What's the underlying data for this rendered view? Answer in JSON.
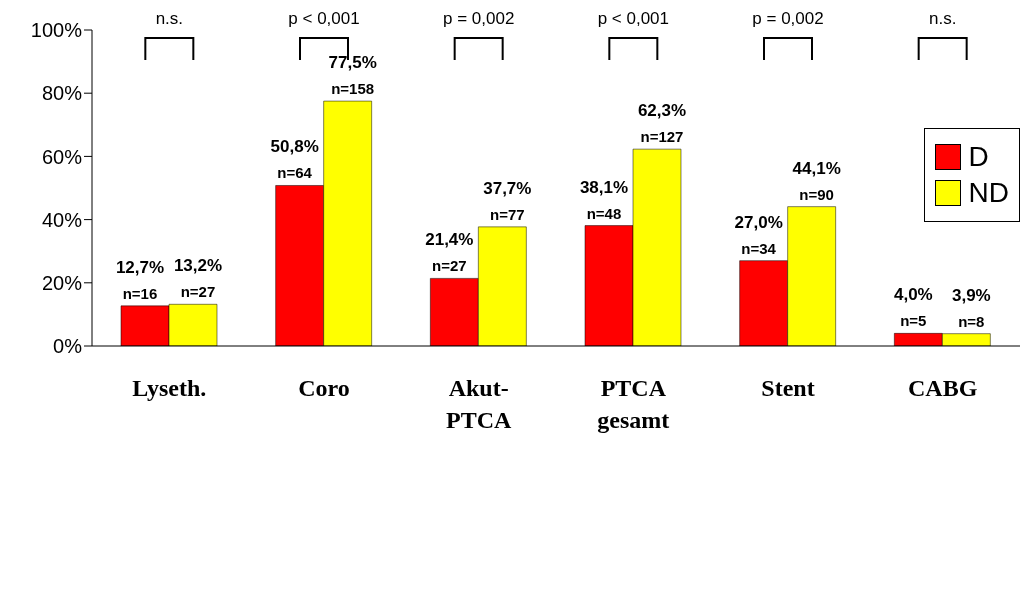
{
  "chart_data": {
    "type": "bar",
    "categories": [
      "Lyseth.",
      "Coro",
      "Akut-\nPTCA",
      "PTCA\ngesamt",
      "Stent",
      "CABG"
    ],
    "series": [
      {
        "name": "D",
        "color": "#ff0000",
        "values": [
          12.7,
          50.8,
          21.4,
          38.1,
          27.0,
          4.0
        ],
        "value_labels": [
          "12,7%\nn=16",
          "50,8%\nn=64",
          "21,4%\nn=27",
          "38,1%\nn=48",
          "27,0%\nn=34",
          "4,0%\nn=5"
        ]
      },
      {
        "name": "ND",
        "color": "#ffff00",
        "values": [
          13.2,
          77.5,
          37.7,
          62.3,
          44.1,
          3.9
        ],
        "value_labels": [
          "13,2%\nn=27",
          "77,5%\nn=158",
          "37,7%\nn=77",
          "62,3%\nn=127",
          "44,1%\nn=90",
          "3,9%\nn=8"
        ]
      }
    ],
    "ylim": [
      0,
      100
    ],
    "yticks": [
      {
        "value": 0,
        "label": "0%"
      },
      {
        "value": 20,
        "label": "20%"
      },
      {
        "value": 40,
        "label": "40%"
      },
      {
        "value": 60,
        "label": "60%"
      },
      {
        "value": 80,
        "label": "80%"
      },
      {
        "value": 100,
        "label": "100%"
      }
    ],
    "annotations": [
      "n.s.",
      "p < 0,001",
      "p = 0,002",
      "p < 0,001",
      "p = 0,002",
      "n.s."
    ],
    "legend": "top right",
    "grid": false
  }
}
